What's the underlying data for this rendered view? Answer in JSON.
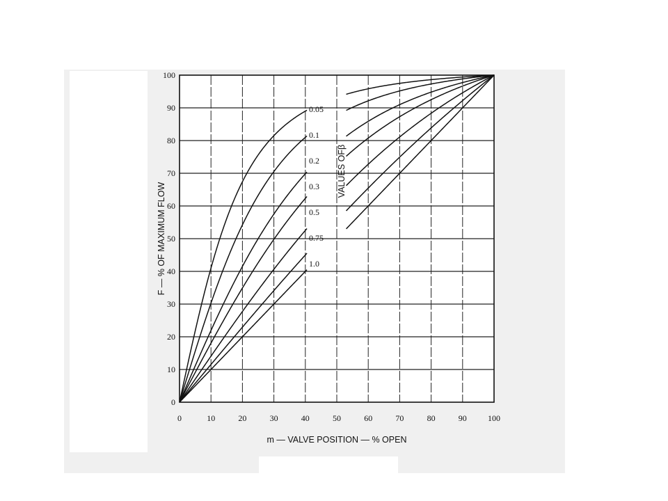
{
  "chart_data": {
    "type": "line",
    "xlabel": "m — VALVE POSITION — % OPEN",
    "ylabel": "F — % OF MAXIMUM FLOW",
    "xlim": [
      0,
      100
    ],
    "ylim": [
      0,
      100
    ],
    "xticks": [
      0,
      10,
      20,
      30,
      40,
      50,
      60,
      70,
      80,
      90,
      100
    ],
    "yticks": [
      0,
      10,
      20,
      30,
      40,
      50,
      60,
      70,
      80,
      90,
      100
    ],
    "grid": true,
    "series_group_label": "VALUES OFβ",
    "series": [
      {
        "name": "0.05",
        "beta": 0.05
      },
      {
        "name": "0.1",
        "beta": 0.1
      },
      {
        "name": "0.2",
        "beta": 0.2
      },
      {
        "name": "0.3",
        "beta": 0.3
      },
      {
        "name": "0.5",
        "beta": 0.5
      },
      {
        "name": "0.75",
        "beta": 0.75
      },
      {
        "name": "1.0",
        "beta": 1.0
      }
    ]
  },
  "colors": {
    "line": "#111111",
    "grid": "#222222",
    "background": "#ffffff",
    "scan_frame": "#f0f0f0"
  }
}
